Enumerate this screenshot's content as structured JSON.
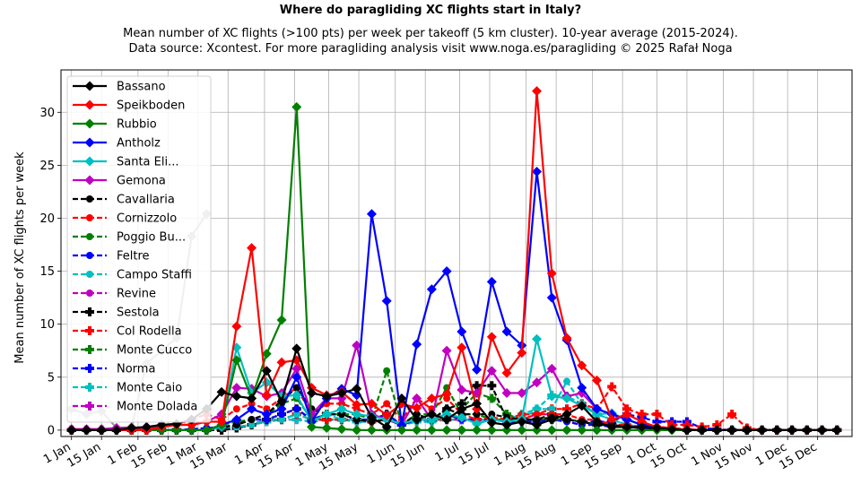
{
  "title": "Where do paragliding XC flights start in Italy?",
  "subtitle_line1": "Mean number of XC flights (>100 pts) per week per takeoff (5 km cluster). 10-year average (2015-2024).",
  "subtitle_line2": "Data source: Xcontest. For more paragliding analysis visit www.noga.es/paragliding © 2025 Rafał Noga",
  "chart_data": {
    "type": "line",
    "title": "Where do paragliding XC flights start in Italy?",
    "ylabel": "Mean number of XC flights per week",
    "xlabel": "",
    "x_unit": "week of year (1-52)",
    "x": [
      1,
      2,
      3,
      4,
      5,
      6,
      7,
      8,
      9,
      10,
      11,
      12,
      13,
      14,
      15,
      16,
      17,
      18,
      19,
      20,
      21,
      22,
      23,
      24,
      25,
      26,
      27,
      28,
      29,
      30,
      31,
      32,
      33,
      34,
      35,
      36,
      37,
      38,
      39,
      40,
      41,
      42,
      43,
      44,
      45,
      46,
      47,
      48,
      49,
      50,
      51,
      52
    ],
    "xlim": [
      0.3,
      53
    ],
    "ylim": [
      -0.6,
      34
    ],
    "xticks": [
      {
        "label": "1 Jan",
        "week": 1.0
      },
      {
        "label": "15 Jan",
        "week": 3.0
      },
      {
        "label": "1 Feb",
        "week": 5.43
      },
      {
        "label": "15 Feb",
        "week": 7.43
      },
      {
        "label": "1 Mar",
        "week": 9.43
      },
      {
        "label": "15 Mar",
        "week": 11.43
      },
      {
        "label": "1 Apr",
        "week": 13.86
      },
      {
        "label": "15 Apr",
        "week": 15.86
      },
      {
        "label": "1 May",
        "week": 18.14
      },
      {
        "label": "15 May",
        "week": 20.14
      },
      {
        "label": "1 Jun",
        "week": 22.57
      },
      {
        "label": "15 Jun",
        "week": 24.57
      },
      {
        "label": "1 Jul",
        "week": 26.86
      },
      {
        "label": "15 Jul",
        "week": 28.86
      },
      {
        "label": "1 Aug",
        "week": 31.29
      },
      {
        "label": "15 Aug",
        "week": 33.29
      },
      {
        "label": "1 Sep",
        "week": 35.71
      },
      {
        "label": "15 Sep",
        "week": 37.71
      },
      {
        "label": "1 Oct",
        "week": 40.0
      },
      {
        "label": "15 Oct",
        "week": 42.0
      },
      {
        "label": "1 Nov",
        "week": 44.43
      },
      {
        "label": "15 Nov",
        "week": 46.43
      },
      {
        "label": "1 Dec",
        "week": 48.71
      },
      {
        "label": "15 Dec",
        "week": 50.71
      }
    ],
    "yticks": [
      0,
      5,
      10,
      15,
      20,
      25,
      30
    ],
    "grid": true,
    "legend_position": "top-left",
    "series": [
      {
        "name": "Bassano",
        "color": "#000000",
        "dash": "solid",
        "marker": "diamond",
        "values": [
          0,
          0,
          0,
          0,
          0.2,
          0.3,
          0.5,
          0.6,
          1.0,
          2.0,
          3.6,
          3.2,
          3.0,
          5.6,
          2.7,
          7.7,
          3.5,
          3.2,
          3.5,
          3.9,
          1.2,
          0.3,
          3.0,
          1.0,
          1.5,
          1.0,
          2.0,
          2.5,
          0.7,
          0.5,
          0.8,
          0.5,
          1.0,
          1.5,
          2.3,
          0.8,
          0.3,
          0.3,
          0.3,
          0.2,
          0.1,
          0,
          0,
          0,
          0,
          0,
          0,
          0,
          0,
          0,
          0,
          0
        ]
      },
      {
        "name": "Speikboden",
        "color": "#ff0000",
        "dash": "solid",
        "marker": "diamond",
        "values": [
          0,
          0,
          0,
          0,
          0,
          0,
          0.3,
          0.5,
          0.5,
          0.8,
          0.8,
          9.8,
          17.2,
          3.3,
          6.4,
          6.6,
          4.0,
          3.3,
          3.6,
          2.4,
          2.5,
          1.4,
          2.5,
          2.1,
          3.0,
          3.4,
          7.8,
          2.0,
          8.8,
          5.4,
          7.3,
          32.0,
          14.8,
          8.7,
          6.1,
          4.7,
          1.0,
          1.5,
          0.8,
          0.3,
          0.2,
          0,
          0,
          0,
          0,
          0,
          0,
          0,
          0,
          0,
          0,
          0
        ]
      },
      {
        "name": "Rubbio",
        "color": "#008000",
        "dash": "solid",
        "marker": "diamond",
        "values": [
          0,
          0,
          0,
          0,
          0,
          0,
          0,
          0,
          0,
          0,
          0.5,
          6.6,
          3.0,
          7.2,
          10.4,
          30.5,
          0.3,
          0.2,
          0.1,
          0,
          0,
          0,
          0,
          0,
          0,
          0,
          0,
          0,
          0,
          0,
          0,
          0,
          0,
          0,
          0,
          0,
          0,
          0,
          0,
          0,
          0,
          0,
          0,
          0,
          0,
          0,
          0,
          0,
          0,
          0,
          0,
          0
        ]
      },
      {
        "name": "Antholz",
        "color": "#0000ff",
        "dash": "solid",
        "marker": "diamond",
        "values": [
          0,
          0,
          0,
          0,
          0,
          0,
          0,
          0,
          0,
          0,
          0.5,
          1.0,
          2.0,
          1.5,
          2.0,
          5.0,
          0.8,
          3.0,
          3.9,
          3.3,
          20.4,
          12.2,
          0.5,
          8.1,
          13.3,
          15.0,
          9.3,
          5.7,
          14.0,
          9.3,
          8.0,
          24.4,
          12.5,
          8.5,
          4.0,
          2.0,
          1.5,
          1.0,
          0.5,
          0.3,
          0.2,
          0,
          0,
          0,
          0,
          0,
          0,
          0,
          0,
          0,
          0,
          0
        ]
      },
      {
        "name": "Santa Eli...",
        "color": "#00bfbf",
        "dash": "solid",
        "marker": "diamond",
        "values": [
          0,
          0,
          0,
          0,
          0,
          0,
          0,
          0,
          0,
          0,
          0.3,
          7.8,
          3.5,
          4.5,
          3.2,
          3.3,
          0.8,
          1.5,
          2.0,
          1.5,
          1.3,
          1.0,
          0.6,
          1.0,
          1.0,
          1.5,
          1.2,
          0.6,
          1.0,
          0.8,
          1.0,
          8.6,
          3.2,
          3.0,
          2.3,
          1.5,
          1.6,
          1.0,
          0.5,
          0.3,
          0.1,
          0,
          0,
          0,
          0,
          0,
          0,
          0,
          0,
          0,
          0,
          0
        ]
      },
      {
        "name": "Gemona",
        "color": "#bf00bf",
        "dash": "solid",
        "marker": "diamond",
        "values": [
          0.1,
          0.1,
          0.1,
          0.2,
          0.2,
          0.3,
          0.3,
          0.5,
          0.5,
          0.8,
          1.5,
          4.0,
          3.9,
          3.2,
          3.5,
          5.8,
          1.5,
          3.0,
          3.0,
          8.0,
          1.5,
          1.0,
          0.5,
          3.0,
          1.0,
          7.5,
          3.8,
          3.5,
          5.6,
          3.5,
          3.5,
          4.5,
          5.8,
          3.2,
          3.5,
          2.0,
          1.5,
          1.0,
          0.5,
          0.3,
          0.1,
          0,
          0,
          0,
          0,
          0,
          0,
          0,
          0,
          0,
          0,
          0
        ]
      },
      {
        "name": "Cavallaria",
        "color": "#000000",
        "dash": "dashed",
        "marker": "circle",
        "values": [
          0,
          0,
          0,
          0,
          0,
          0,
          0,
          0,
          0,
          0,
          0.2,
          0.5,
          1.0,
          1.5,
          2.8,
          4.0,
          2.0,
          1.5,
          1.5,
          1.0,
          0.8,
          1.0,
          0.5,
          1.5,
          1.0,
          2.0,
          1.5,
          1.5,
          1.5,
          1.2,
          1.0,
          1.0,
          1.2,
          1.0,
          0.8,
          0.5,
          0.5,
          0.3,
          0.2,
          0.1,
          0.1,
          0,
          0,
          0,
          0,
          0,
          0,
          0,
          0,
          0,
          0,
          0
        ]
      },
      {
        "name": "Cornizzolo",
        "color": "#ff0000",
        "dash": "dashed",
        "marker": "circle",
        "values": [
          0,
          0,
          0,
          0,
          0.1,
          0.2,
          0.3,
          0.5,
          1.0,
          1.5,
          1.0,
          2.0,
          2.5,
          2.0,
          3.0,
          4.0,
          1.5,
          2.5,
          2.5,
          2.0,
          1.5,
          2.5,
          1.0,
          3.0,
          2.0,
          3.0,
          1.5,
          1.0,
          1.2,
          1.0,
          1.5,
          1.5,
          1.5,
          1.5,
          1.0,
          1.0,
          0.5,
          0.5,
          0.3,
          0.3,
          0.2,
          0.1,
          0,
          0,
          0,
          0,
          0,
          0,
          0,
          0,
          0,
          0
        ]
      },
      {
        "name": "Poggio Bu...",
        "color": "#008000",
        "dash": "dashed",
        "marker": "circle",
        "values": [
          0,
          0,
          0,
          0,
          0,
          0,
          0,
          0,
          0,
          0,
          0.5,
          0.8,
          1.0,
          1.5,
          2.5,
          3.0,
          1.0,
          1.5,
          1.5,
          1.5,
          1.0,
          5.6,
          0.5,
          1.5,
          1.5,
          4.0,
          1.5,
          1.5,
          1.0,
          1.0,
          1.0,
          1.0,
          1.0,
          1.0,
          0.8,
          0.5,
          0.5,
          0.3,
          0.3,
          0.2,
          0.1,
          0,
          0,
          0,
          0,
          0,
          0,
          0,
          0,
          0,
          0,
          0
        ]
      },
      {
        "name": "Feltre",
        "color": "#0000ff",
        "dash": "dashed",
        "marker": "circle",
        "values": [
          0,
          0,
          0,
          0,
          0,
          0,
          0,
          0,
          0.1,
          0.2,
          0.3,
          0.5,
          1.0,
          1.0,
          1.5,
          2.0,
          1.0,
          1.5,
          1.5,
          1.0,
          1.0,
          1.5,
          0.5,
          1.0,
          1.0,
          1.5,
          1.0,
          1.0,
          1.0,
          0.8,
          0.8,
          0.8,
          1.0,
          0.8,
          0.5,
          0.5,
          0.3,
          0.3,
          0.2,
          0.1,
          0.1,
          0,
          0,
          0,
          0,
          0,
          0,
          0,
          0,
          0,
          0,
          0
        ]
      },
      {
        "name": "Campo Staffi",
        "color": "#00bfbf",
        "dash": "dashed",
        "marker": "circle",
        "values": [
          0,
          0,
          0,
          0,
          0,
          0,
          0,
          0,
          0,
          0,
          0.2,
          0.3,
          0.5,
          1.0,
          1.0,
          1.5,
          1.0,
          1.5,
          1.0,
          1.0,
          1.0,
          1.5,
          0.5,
          1.0,
          1.0,
          1.0,
          1.0,
          1.0,
          1.0,
          1.0,
          1.0,
          2.0,
          2.0,
          4.6,
          2.5,
          1.5,
          1.0,
          0.5,
          0.3,
          0.2,
          0.1,
          0,
          0,
          0,
          0,
          0,
          0,
          0,
          0,
          0,
          0,
          0
        ]
      },
      {
        "name": "Revine",
        "color": "#bf00bf",
        "dash": "dashed",
        "marker": "circle",
        "values": [
          0,
          0,
          0,
          0,
          0,
          0,
          0,
          0,
          0,
          0.1,
          0.2,
          0.5,
          1.0,
          1.0,
          1.5,
          2.0,
          1.0,
          1.5,
          1.5,
          1.0,
          1.0,
          1.5,
          0.5,
          1.0,
          1.0,
          1.5,
          1.0,
          1.0,
          1.0,
          0.8,
          0.8,
          0.8,
          1.0,
          0.8,
          0.5,
          0.5,
          0.3,
          0.3,
          0.2,
          0.1,
          0.1,
          0,
          0,
          0,
          0,
          0,
          0,
          0,
          0,
          0,
          0,
          0
        ]
      },
      {
        "name": "Sestola",
        "color": "#000000",
        "dash": "dashed",
        "marker": "plus",
        "values": [
          0,
          0,
          0,
          0,
          0,
          0,
          0,
          0,
          0,
          0,
          0,
          0.2,
          0.5,
          1.0,
          1.5,
          2.0,
          1.0,
          1.5,
          1.5,
          1.0,
          1.0,
          1.5,
          0.5,
          1.0,
          1.0,
          2.0,
          2.5,
          4.2,
          4.2,
          1.0,
          1.0,
          1.0,
          1.5,
          1.0,
          0.8,
          0.5,
          0.5,
          0.3,
          0.3,
          0.2,
          0.1,
          0,
          0,
          0,
          0,
          0,
          0,
          0,
          0,
          0,
          0,
          0
        ]
      },
      {
        "name": "Col Rodella",
        "color": "#ff0000",
        "dash": "dashed",
        "marker": "plus",
        "values": [
          0,
          0,
          0,
          0,
          0,
          0,
          0,
          0,
          0,
          0,
          0,
          0.2,
          0.5,
          1.0,
          1.0,
          1.5,
          1.0,
          1.0,
          1.0,
          1.0,
          0.8,
          1.0,
          0.5,
          1.0,
          1.0,
          1.0,
          1.0,
          1.0,
          1.0,
          1.0,
          1.0,
          1.5,
          2.0,
          2.0,
          2.5,
          2.0,
          4.1,
          2.0,
          1.5,
          1.5,
          0.5,
          0.5,
          0.3,
          0.5,
          1.5,
          0.2,
          0,
          0,
          0,
          0,
          0,
          0
        ]
      },
      {
        "name": "Monte Cucco",
        "color": "#008000",
        "dash": "dashed",
        "marker": "plus",
        "values": [
          0,
          0,
          0,
          0,
          0,
          0,
          0,
          0,
          0,
          0,
          0.1,
          0.3,
          0.5,
          1.0,
          1.0,
          1.5,
          1.0,
          1.0,
          1.0,
          1.0,
          0.8,
          1.0,
          0.5,
          1.0,
          1.0,
          1.0,
          2.0,
          3.5,
          3.0,
          1.5,
          1.0,
          1.0,
          1.0,
          1.0,
          0.8,
          0.5,
          0.5,
          0.3,
          0.2,
          0.1,
          0.1,
          0,
          0,
          0,
          0,
          0,
          0,
          0,
          0,
          0,
          0,
          0
        ]
      },
      {
        "name": "Norma",
        "color": "#0000ff",
        "dash": "dashed",
        "marker": "plus",
        "values": [
          0,
          0,
          0,
          0,
          0,
          0,
          0,
          0,
          0,
          0,
          0.1,
          0.2,
          0.5,
          1.0,
          1.0,
          1.5,
          1.0,
          1.0,
          1.0,
          1.0,
          0.8,
          1.0,
          0.5,
          1.0,
          1.0,
          1.0,
          1.0,
          1.0,
          1.0,
          0.8,
          0.8,
          0.8,
          1.0,
          1.0,
          0.8,
          0.8,
          0.8,
          1.5,
          1.2,
          0.8,
          0.8,
          0.8,
          0.2,
          0.1,
          0,
          0,
          0,
          0,
          0,
          0,
          0,
          0
        ]
      },
      {
        "name": "Monte Caio",
        "color": "#00bfbf",
        "dash": "dashed",
        "marker": "plus",
        "values": [
          0,
          0,
          0,
          0,
          0,
          0,
          0,
          0,
          0,
          0,
          0.1,
          0.2,
          0.5,
          0.8,
          1.0,
          1.0,
          0.8,
          1.0,
          1.0,
          0.8,
          0.8,
          1.0,
          0.5,
          0.8,
          0.8,
          1.0,
          1.0,
          1.0,
          1.0,
          1.0,
          1.5,
          2.0,
          3.3,
          3.2,
          2.5,
          1.5,
          1.0,
          0.5,
          0.3,
          0.2,
          0.1,
          0,
          0,
          0,
          0,
          0,
          0,
          0,
          0,
          0,
          0,
          0
        ]
      },
      {
        "name": "Monte Dolada",
        "color": "#bf00bf",
        "dash": "dashed",
        "marker": "plus",
        "values": [
          0,
          0,
          0,
          0,
          0,
          0,
          0,
          0,
          0,
          0,
          0.1,
          0.2,
          0.5,
          0.8,
          1.0,
          1.0,
          0.8,
          1.0,
          1.0,
          0.8,
          0.8,
          1.0,
          0.5,
          0.8,
          0.8,
          1.0,
          1.0,
          1.0,
          1.0,
          1.0,
          1.0,
          1.5,
          1.5,
          1.0,
          0.8,
          0.5,
          0.5,
          0.3,
          0.2,
          0.1,
          0.1,
          0,
          0,
          0,
          0,
          0,
          0,
          0,
          0,
          0,
          0,
          0
        ]
      },
      {
        "name": "",
        "color": "#999999",
        "dash": "solid",
        "marker": "diamond",
        "values": [
          2.0,
          1.5,
          1.8,
          0.2,
          0.3,
          6.3,
          7.5,
          8.7,
          18.3,
          20.4,
          null,
          null,
          null,
          null,
          null,
          null,
          null,
          null,
          null,
          null,
          null,
          null,
          null,
          null,
          null,
          null,
          null,
          null,
          null,
          null,
          null,
          null,
          null,
          null,
          null,
          null,
          null,
          null,
          null,
          null,
          null,
          null,
          null,
          null,
          null,
          null,
          null,
          null,
          null,
          null,
          null,
          null
        ]
      }
    ]
  }
}
